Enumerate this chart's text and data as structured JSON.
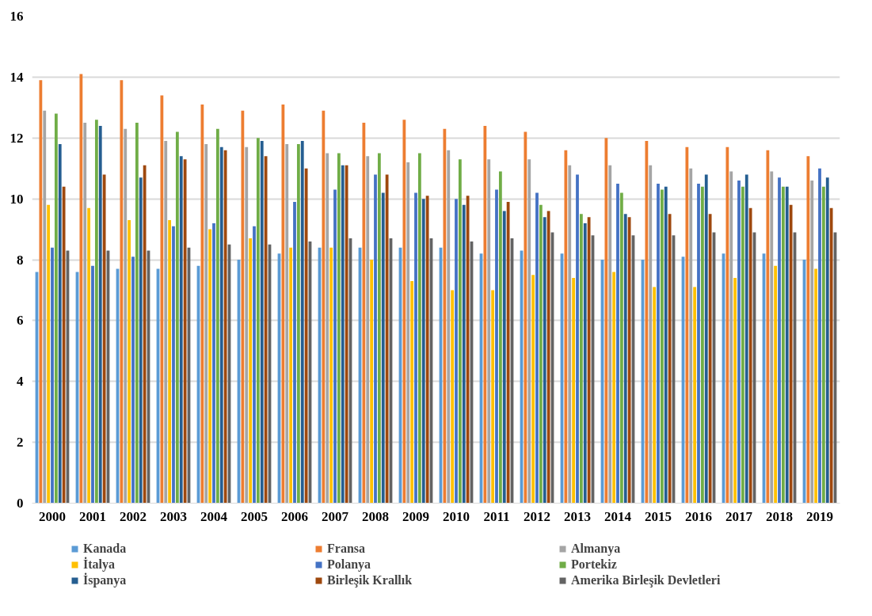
{
  "chart_data": {
    "type": "bar",
    "categories": [
      "2000",
      "2001",
      "2002",
      "2003",
      "2004",
      "2005",
      "2006",
      "2007",
      "2008",
      "2009",
      "2010",
      "2011",
      "2012",
      "2013",
      "2014",
      "2015",
      "2016",
      "2017",
      "2018",
      "2019"
    ],
    "series": [
      {
        "name": "Kanada",
        "color": "#5b9bd5",
        "values": [
          7.6,
          7.6,
          7.7,
          7.7,
          7.8,
          8.0,
          8.2,
          8.4,
          8.4,
          8.4,
          8.4,
          8.2,
          8.3,
          8.2,
          8.0,
          8.0,
          8.1,
          8.2,
          8.2,
          8.0
        ]
      },
      {
        "name": "Fransa",
        "color": "#ed7d31",
        "values": [
          13.9,
          14.1,
          13.9,
          13.4,
          13.1,
          12.9,
          13.1,
          12.9,
          12.5,
          12.6,
          12.3,
          12.4,
          12.2,
          11.6,
          12.0,
          11.9,
          11.7,
          11.7,
          11.6,
          11.4
        ]
      },
      {
        "name": "Almanya",
        "color": "#a5a5a5",
        "values": [
          12.9,
          12.5,
          12.3,
          11.9,
          11.8,
          11.7,
          11.8,
          11.5,
          11.4,
          11.2,
          11.6,
          11.3,
          11.3,
          11.1,
          11.1,
          11.1,
          11.0,
          10.9,
          10.9,
          10.6
        ]
      },
      {
        "name": "İtalya",
        "color": "#ffc000",
        "values": [
          9.8,
          9.7,
          9.3,
          9.3,
          9.0,
          8.7,
          8.4,
          8.4,
          8.0,
          7.3,
          7.0,
          7.0,
          7.5,
          7.4,
          7.6,
          7.1,
          7.1,
          7.4,
          7.8,
          7.7
        ]
      },
      {
        "name": "Polanya",
        "color": "#4472c4",
        "values": [
          8.4,
          7.8,
          8.1,
          9.1,
          9.2,
          9.1,
          9.9,
          10.3,
          10.8,
          10.2,
          10.0,
          10.3,
          10.2,
          10.8,
          10.5,
          10.5,
          10.5,
          10.6,
          10.7,
          11.0
        ]
      },
      {
        "name": "Portekiz",
        "color": "#70ad47",
        "values": [
          12.8,
          12.6,
          12.5,
          12.2,
          12.3,
          12.0,
          11.8,
          11.5,
          11.5,
          11.5,
          11.3,
          10.9,
          9.8,
          9.5,
          10.2,
          10.3,
          10.4,
          10.4,
          10.4,
          10.4
        ]
      },
      {
        "name": "İspanya",
        "color": "#255e91",
        "values": [
          11.8,
          12.4,
          10.7,
          11.4,
          11.7,
          11.9,
          11.9,
          11.1,
          10.2,
          10.0,
          9.8,
          9.6,
          9.4,
          9.2,
          9.5,
          10.4,
          10.8,
          10.8,
          10.4,
          10.7
        ]
      },
      {
        "name": "Birleşik Krallık",
        "color": "#9e480e",
        "values": [
          10.4,
          10.8,
          11.1,
          11.3,
          11.6,
          11.4,
          11.0,
          11.1,
          10.8,
          10.1,
          10.1,
          9.9,
          9.6,
          9.4,
          9.4,
          9.5,
          9.5,
          9.7,
          9.8,
          9.7
        ]
      },
      {
        "name": "Amerika Birleşik Devletleri",
        "color": "#636363",
        "values": [
          8.3,
          8.3,
          8.3,
          8.4,
          8.5,
          8.5,
          8.6,
          8.7,
          8.7,
          8.7,
          8.6,
          8.7,
          8.9,
          8.8,
          8.8,
          8.8,
          8.9,
          8.9,
          8.9,
          8.9
        ]
      }
    ],
    "ylim": [
      0,
      16
    ],
    "yticks": [
      0,
      2,
      4,
      6,
      8,
      10,
      12,
      14,
      16
    ],
    "grid": "y",
    "legend": "bottom"
  }
}
